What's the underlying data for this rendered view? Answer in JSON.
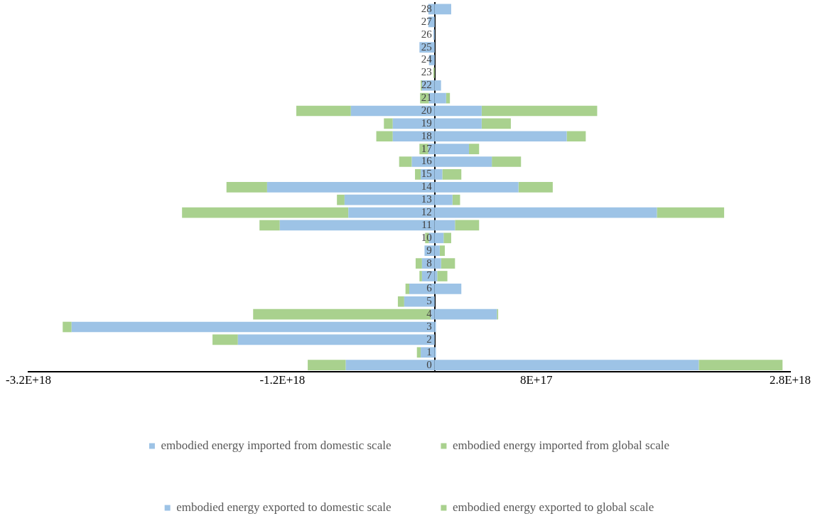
{
  "chart_data": {
    "type": "bar",
    "orientation": "horizontal",
    "stacked": true,
    "grid": false,
    "legend": "bottom",
    "categories": [
      "28",
      "27",
      "26",
      "25",
      "24",
      "23",
      "22",
      "21",
      "20",
      "19",
      "18",
      "17",
      "16",
      "15",
      "14",
      "13",
      "12",
      "11",
      "10",
      "9",
      "8",
      "7",
      "6",
      "5",
      "4",
      "3",
      "2",
      "1",
      "0"
    ],
    "xlim": [
      -3.2e+18,
      2.8e+18
    ],
    "xticks": [
      {
        "value": -3.2e+18,
        "label": "-3.2E+18"
      },
      {
        "value": -1.2e+18,
        "label": "-1.2E+18"
      },
      {
        "value": 8e+17,
        "label": "8E+17"
      },
      {
        "value": 2.8e+18,
        "label": "2.8E+18"
      }
    ],
    "series": [
      {
        "name": "embodied energy imported from domestic scale",
        "color": "#9dc3e6",
        "values": [
          -5e+16,
          -5e+16,
          -1e+16,
          -1.2e+17,
          -4.5e+16,
          0,
          -1e+17,
          -4.5e+16,
          -6.6e+17,
          -3.3e+17,
          -3.3e+17,
          -5e+16,
          -1.8e+17,
          -1.1e+17,
          -1.32e+18,
          -7.1e+17,
          -6.8e+17,
          -1.22e+18,
          -4.5e+16,
          -8e+16,
          -1e+17,
          -1e+17,
          -2e+17,
          -2.4e+17,
          -3e+16,
          -2.86e+18,
          -1.55e+18,
          -1.1e+17,
          -7e+17
        ]
      },
      {
        "name": "embodied energy imported from global scale",
        "color": "#a9d18e",
        "values": [
          null,
          0,
          0,
          0,
          0,
          -1e+16,
          -1e+16,
          -7e+16,
          -4.3e+17,
          -7e+16,
          -1.3e+17,
          -7e+16,
          -1e+17,
          -4.5e+16,
          -3.2e+17,
          -6e+16,
          -1.31e+18,
          -1.6e+17,
          -3e+16,
          0,
          -5e+16,
          -2e+16,
          -3e+16,
          -5e+16,
          -1.4e+18,
          -7e+16,
          -2e+17,
          -3e+16,
          -3e+17
        ]
      },
      {
        "name": "embodied energy exported to domestic scale",
        "color": "#9dc3e6",
        "values": [
          1.3e+17,
          0,
          0,
          0,
          0,
          0,
          5e+16,
          9e+16,
          3.7e+17,
          3.7e+17,
          1.04e+18,
          2.7e+17,
          4.5e+17,
          6e+16,
          6.6e+17,
          1.4e+17,
          1.75e+18,
          1.6e+17,
          7e+16,
          4e+16,
          5e+16,
          2e+16,
          2.1e+17,
          0,
          4.9e+17,
          1e+16,
          0,
          1e+16,
          2.08e+18
        ]
      },
      {
        "name": "embodied energy exported to global scale",
        "color": "#a9d18e",
        "values": [
          0,
          0,
          0,
          0,
          0,
          0,
          0,
          3e+16,
          9.1e+17,
          2.3e+17,
          1.5e+17,
          8e+16,
          2.3e+17,
          1.5e+17,
          2.7e+17,
          6e+16,
          5.3e+17,
          1.9e+17,
          6e+16,
          4e+16,
          1.1e+17,
          8e+16,
          0,
          0,
          1e+16,
          0,
          0,
          0,
          6.6e+17
        ]
      }
    ]
  }
}
